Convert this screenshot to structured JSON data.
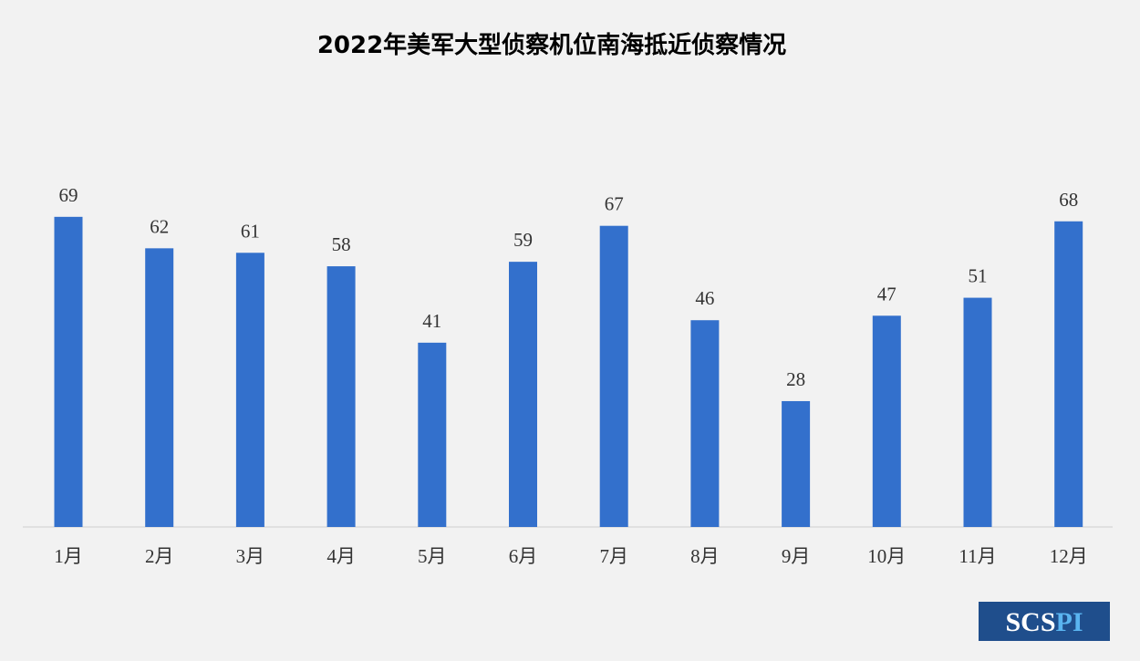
{
  "chart_data": {
    "type": "bar",
    "title": "2022年美军大型侦察机位南海抵近侦察情况",
    "categories": [
      "1月",
      "2月",
      "3月",
      "4月",
      "5月",
      "6月",
      "7月",
      "8月",
      "9月",
      "10月",
      "11月",
      "12月"
    ],
    "values": [
      69,
      62,
      61,
      58,
      41,
      59,
      67,
      46,
      28,
      47,
      51,
      68
    ],
    "color": "#3370cc"
  },
  "logo": [
    "SCS",
    "PI"
  ]
}
